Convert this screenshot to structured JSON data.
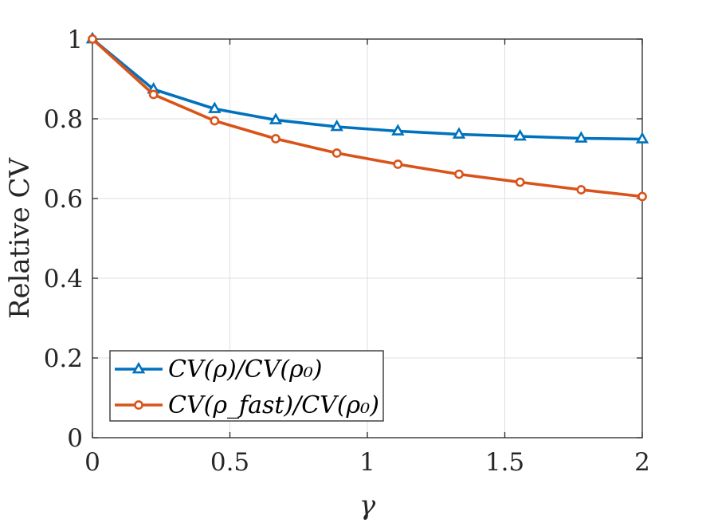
{
  "chart_data": {
    "type": "line",
    "title": "",
    "xlabel": "γ",
    "ylabel": "Relative CV",
    "xlim": [
      0,
      2
    ],
    "ylim": [
      0,
      1
    ],
    "grid": true,
    "xticks": [
      0,
      0.5,
      1,
      1.5,
      2
    ],
    "xtick_labels": [
      "0",
      "0.5",
      "1",
      "1.5",
      "2"
    ],
    "yticks": [
      0,
      0.2,
      0.4,
      0.6,
      0.8,
      1
    ],
    "ytick_labels": [
      "0",
      "0.2",
      "0.4",
      "0.6",
      "0.8",
      "1"
    ],
    "legend_position": "bottom-left",
    "x": [
      0,
      0.2222,
      0.4444,
      0.6667,
      0.8889,
      1.1111,
      1.3333,
      1.5556,
      1.7778,
      2
    ],
    "series": [
      {
        "name": "CV(ρ)/CV(ρ0)",
        "legend_label": "CV(ρ)/CV(ρ₀)",
        "color": "#0072BD",
        "marker": "triangle",
        "values": [
          1.0,
          0.874,
          0.825,
          0.797,
          0.78,
          0.769,
          0.761,
          0.756,
          0.751,
          0.749
        ]
      },
      {
        "name": "CV(ρfast)/CV(ρ0)",
        "legend_label": "CV(ρ_fast)/CV(ρ₀)",
        "color": "#D95319",
        "marker": "circle",
        "values": [
          1.0,
          0.861,
          0.795,
          0.75,
          0.714,
          0.686,
          0.661,
          0.641,
          0.622,
          0.605
        ]
      }
    ]
  }
}
